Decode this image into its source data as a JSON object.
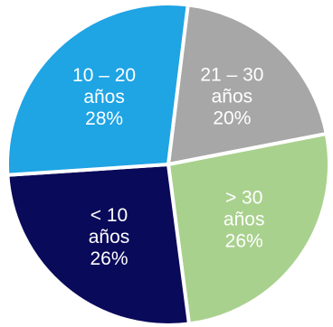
{
  "chart_data": {
    "type": "pie",
    "title": "",
    "slices": [
      {
        "label_lines": [
          "21 – 30",
          "años"
        ],
        "value": 20,
        "value_label": "20%",
        "color": "#a7a7a7"
      },
      {
        "label_lines": [
          "> 30",
          "años"
        ],
        "value": 26,
        "value_label": "26%",
        "color": "#a9d18e"
      },
      {
        "label_lines": [
          "< 10",
          "años"
        ],
        "value": 26,
        "value_label": "26%",
        "color": "#0a0a5a"
      },
      {
        "label_lines": [
          "10 – 20",
          "años"
        ],
        "value": 28,
        "value_label": "28%",
        "color": "#1fa4e4"
      }
    ],
    "legend": "none"
  }
}
